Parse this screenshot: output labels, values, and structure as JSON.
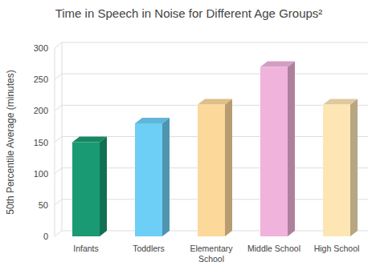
{
  "chart_data": {
    "type": "bar",
    "title": "Time in Speech in Noise for Different Age Groups²",
    "y_label": "50th Percentile Average (minutes)",
    "categories": [
      "Infants",
      "Toddlers",
      "Elementary School",
      "Middle School",
      "High School"
    ],
    "values": [
      150,
      180,
      210,
      270,
      210
    ],
    "colors": [
      "#1a9a72",
      "#6dcff6",
      "#fdd89b",
      "#f0b3dc",
      "#fde6b3"
    ],
    "ylim": [
      0,
      300
    ],
    "yticks": [
      0,
      50,
      100,
      150,
      200,
      250,
      300
    ],
    "grid": true
  }
}
